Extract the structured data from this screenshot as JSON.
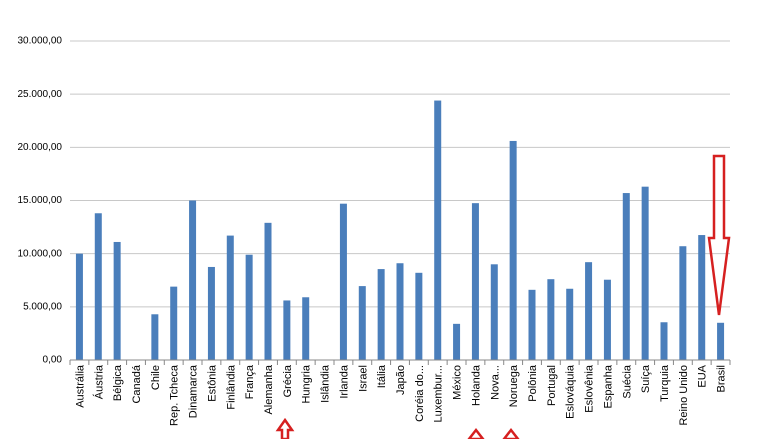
{
  "chart_data": {
    "type": "bar",
    "categories": [
      "Austrália",
      "Áustria",
      "Bélgica",
      "Canadá",
      "Chile",
      "Rep. Tcheca",
      "Dinamarca",
      "Estônia",
      "Finlândia",
      "França",
      "Alemanha",
      "Grécia",
      "Hungria",
      "Islândia",
      "Irlanda",
      "Israel",
      "Itália",
      "Japão",
      "Coréia do...",
      "Luxembur...",
      "México",
      "Holanda",
      "Nova...",
      "Noruega",
      "Polônia",
      "Portugal",
      "Eslováquia",
      "Eslovênia",
      "Espanha",
      "Suécia",
      "Suíça",
      "Turquia",
      "Reino Unido",
      "EUA",
      "Brasil"
    ],
    "values": [
      10000,
      13800,
      11100,
      0,
      4300,
      6900,
      15000,
      8750,
      11700,
      9900,
      12900,
      5600,
      5900,
      0,
      14700,
      6950,
      8550,
      9100,
      8200,
      24400,
      3400,
      14750,
      9000,
      20600,
      6600,
      7600,
      6700,
      9200,
      7550,
      15700,
      16300,
      3550,
      10700,
      11750,
      3500
    ],
    "color": "#4a7ebb",
    "ylim": [
      0,
      30000
    ],
    "yticks": [
      {
        "value": 0,
        "label": "0,00"
      },
      {
        "value": 5000,
        "label": "5.000,00"
      },
      {
        "value": 10000,
        "label": "10.000,00"
      },
      {
        "value": 15000,
        "label": "15.000,00"
      },
      {
        "value": 20000,
        "label": "20.000,00"
      },
      {
        "value": 25000,
        "label": "25.000,00"
      },
      {
        "value": 30000,
        "label": "30.000,00"
      }
    ],
    "grid": true
  }
}
